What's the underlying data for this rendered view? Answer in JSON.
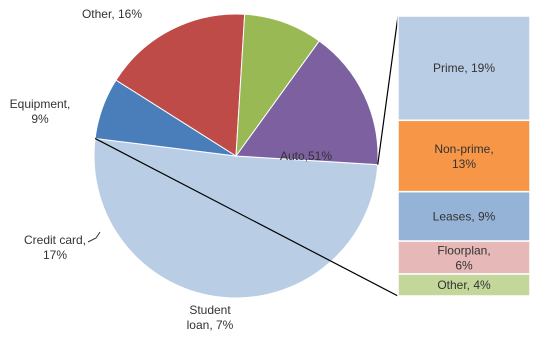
{
  "chart_data": [
    {
      "type": "pie",
      "slices": [
        {
          "label": "Auto,51%",
          "value": 51,
          "color": "#b9cde5"
        },
        {
          "label": "Student loan, 7%",
          "value": 7,
          "color": "#4a7ebb"
        },
        {
          "label": "Credit card, 17%",
          "value": 17,
          "color": "#be4b48"
        },
        {
          "label": "Equipment, 9%",
          "value": 9,
          "color": "#98b954"
        },
        {
          "label": "Other, 16%",
          "value": 16,
          "color": "#7d60a0"
        }
      ]
    },
    {
      "type": "bar",
      "stacked": true,
      "parent": "Auto,51%",
      "segments": [
        {
          "label": "Prime, 19%",
          "value": 19,
          "color": "#b9cde5"
        },
        {
          "label": "Non-prime, 13%",
          "value": 13,
          "color": "#f79646"
        },
        {
          "label": "Leases, 9%",
          "value": 9,
          "color": "#95b3d7"
        },
        {
          "label": "Floorplan, 6%",
          "value": 6,
          "color": "#e6b9b8"
        },
        {
          "label": "Other, 4%",
          "value": 4,
          "color": "#c4d79b"
        }
      ]
    }
  ]
}
